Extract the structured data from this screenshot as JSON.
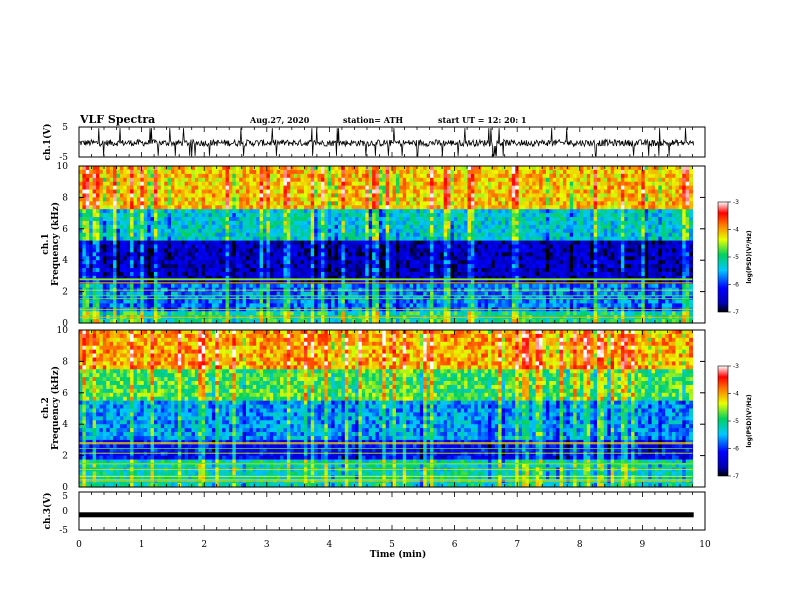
{
  "header": {
    "title": "VLF Spectra",
    "date": "Aug.27, 2020",
    "station": "station= ATH",
    "start": "start  UT  =   12: 20: 1"
  },
  "chart_data": [
    {
      "type": "line",
      "name": "ch1-waveform",
      "ylabel": "ch.1(V)",
      "ylim": [
        -5,
        5
      ],
      "yticks": [
        "5",
        "-5"
      ],
      "xlim": [
        0,
        10
      ]
    },
    {
      "type": "heatmap",
      "name": "ch1-spectrogram",
      "ylabel_line1": "ch.1",
      "ylabel_line2": "Frequency (kHz)",
      "ylim": [
        0,
        10
      ],
      "yticks": [
        "0",
        "2",
        "4",
        "6",
        "8",
        "10"
      ],
      "xlim": [
        0,
        9.8
      ],
      "colorbar": {
        "label": "log(PSD)(V²/Hz)",
        "range": [
          -7,
          -3
        ],
        "ticks": [
          "-3",
          "-4",
          "-5",
          "-6",
          "-7"
        ]
      },
      "bands": [
        {
          "f0": 0,
          "f1": 0.8,
          "level": 0.5
        },
        {
          "f0": 0.8,
          "f1": 2.6,
          "level": 0.32
        },
        {
          "f0": 2.6,
          "f1": 5.2,
          "level": 0.12
        },
        {
          "f0": 5.2,
          "f1": 7.2,
          "level": 0.42
        },
        {
          "f0": 7.2,
          "f1": 10,
          "level": 0.72
        }
      ]
    },
    {
      "type": "heatmap",
      "name": "ch2-spectrogram",
      "ylabel_line1": "ch.2",
      "ylabel_line2": "Frequency (kHz)",
      "ylim": [
        0,
        10
      ],
      "yticks": [
        "0",
        "2",
        "4",
        "6",
        "8",
        "10"
      ],
      "xlim": [
        0,
        9.8
      ],
      "colorbar": {
        "label": "log(PSD)(V²/Hz)",
        "range": [
          -7,
          -3
        ],
        "ticks": [
          "-3",
          "-4",
          "-5",
          "-6",
          "-7"
        ]
      },
      "bands": [
        {
          "f0": 0,
          "f1": 1.8,
          "level": 0.45
        },
        {
          "f0": 1.8,
          "f1": 3.0,
          "level": 0.2
        },
        {
          "f0": 3.0,
          "f1": 5.5,
          "level": 0.35
        },
        {
          "f0": 5.5,
          "f1": 7.5,
          "level": 0.55
        },
        {
          "f0": 7.5,
          "f1": 10,
          "level": 0.75
        }
      ]
    },
    {
      "type": "line",
      "name": "ch3-waveform",
      "ylabel": "ch.3(V)",
      "ylim": [
        -5,
        5
      ],
      "yticks": [
        "5",
        "0",
        "-5"
      ],
      "value": -1,
      "xlim": [
        0,
        10
      ]
    }
  ],
  "xaxis": {
    "label": "Time  (min)",
    "ticks": [
      "0",
      "1",
      "2",
      "3",
      "4",
      "5",
      "6",
      "7",
      "8",
      "9",
      "10"
    ],
    "range": [
      0,
      10
    ]
  }
}
